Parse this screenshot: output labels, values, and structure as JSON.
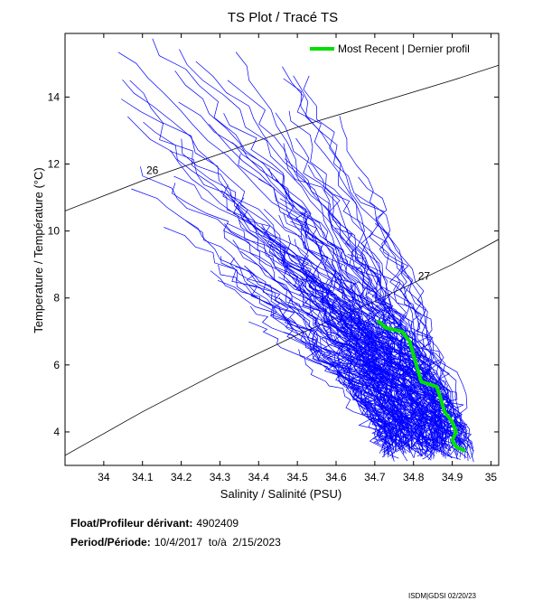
{
  "chart_data": {
    "type": "line",
    "title": "TS Plot / Tracé TS",
    "xlabel": "Salinity / Salinité (PSU)",
    "ylabel": "Temperature / Température (°C)",
    "xlim": [
      33.9,
      35.02
    ],
    "ylim": [
      3.0,
      15.9
    ],
    "xticks": [
      "34",
      "34.1",
      "34.2",
      "34.3",
      "34.4",
      "34.5",
      "34.6",
      "34.7",
      "34.8",
      "34.9",
      "35"
    ],
    "yticks": [
      "4",
      "6",
      "8",
      "10",
      "12",
      "14"
    ],
    "xtick_values": [
      34.0,
      34.1,
      34.2,
      34.3,
      34.4,
      34.5,
      34.6,
      34.7,
      34.8,
      34.9,
      35.0
    ],
    "ytick_values": [
      4,
      6,
      8,
      10,
      12,
      14
    ],
    "density_contours": [
      {
        "label": "26",
        "points": [
          [
            33.9,
            10.6
          ],
          [
            34.1,
            11.5
          ],
          [
            34.3,
            12.3
          ],
          [
            34.5,
            13.1
          ],
          [
            34.7,
            13.8
          ],
          [
            34.9,
            14.5
          ],
          [
            35.02,
            14.95
          ]
        ]
      },
      {
        "label": "27",
        "points": [
          [
            33.9,
            3.3
          ],
          [
            34.1,
            4.6
          ],
          [
            34.3,
            5.8
          ],
          [
            34.5,
            6.9
          ],
          [
            34.7,
            7.9
          ],
          [
            34.9,
            9.0
          ],
          [
            35.02,
            9.75
          ]
        ]
      }
    ],
    "series": [
      {
        "name": "Most Recent | Dernier profil",
        "color": "#00e000",
        "points": [
          [
            34.71,
            7.3
          ],
          [
            34.73,
            7.1
          ],
          [
            34.77,
            7.0
          ],
          [
            34.79,
            6.7
          ],
          [
            34.8,
            6.3
          ],
          [
            34.81,
            5.9
          ],
          [
            34.82,
            5.5
          ],
          [
            34.86,
            5.35
          ],
          [
            34.87,
            5.0
          ],
          [
            34.88,
            4.6
          ],
          [
            34.9,
            4.3
          ],
          [
            34.91,
            4.0
          ],
          [
            34.9,
            3.75
          ],
          [
            34.91,
            3.55
          ],
          [
            34.93,
            3.45
          ]
        ]
      }
    ],
    "historical_profiles_color": "#0000ff",
    "legend_position": "top-right",
    "grid": false
  },
  "info": {
    "float_label": "Float/Profileur dérivant:",
    "float_value": "4902409",
    "period_label": "Period/Période:",
    "period_value": "10/4/2017  to/à  2/15/2023"
  },
  "footer": "ISDM|GDSI 02/20/23"
}
